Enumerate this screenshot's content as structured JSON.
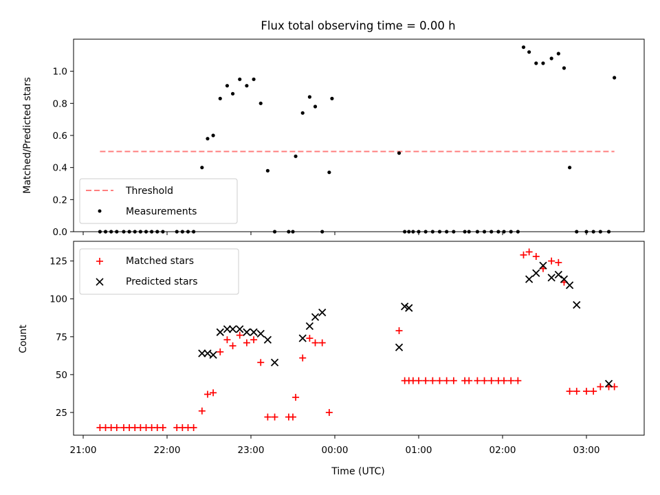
{
  "chart_data": [
    {
      "type": "scatter",
      "title": "Flux total observing time = 0.00 h",
      "xlabel": "",
      "ylabel": "Matched/Predicted stars",
      "ylim": [
        0,
        1.2
      ],
      "xlim": [
        "21:00",
        "03:30"
      ],
      "y_ticks": [
        "0.0",
        "0.2",
        "0.4",
        "0.6",
        "0.8",
        "1.0"
      ],
      "x_ticks": [
        "21:00",
        "22:00",
        "23:00",
        "00:00",
        "01:00",
        "02:00",
        "03:00"
      ],
      "legend": {
        "position": "lower-left",
        "entries": [
          "Threshold",
          "Measurements"
        ]
      },
      "colors": {
        "threshold": "#ff7f7f",
        "measurements": "#000000"
      },
      "series": [
        {
          "name": "Threshold",
          "style": "dashed-line",
          "x": [
            "21:12",
            "03:20"
          ],
          "values": [
            0.5,
            0.5
          ]
        },
        {
          "name": "Measurements",
          "style": "dot",
          "x": [
            "21:12",
            "21:16",
            "21:20",
            "21:24",
            "21:29",
            "21:33",
            "21:37",
            "21:41",
            "21:45",
            "21:49",
            "21:53",
            "21:57",
            "22:07",
            "22:11",
            "22:15",
            "22:19",
            "22:25",
            "22:29",
            "22:33",
            "22:38",
            "22:43",
            "22:47",
            "22:52",
            "22:57",
            "23:02",
            "23:07",
            "23:12",
            "23:17",
            "23:27",
            "23:30",
            "23:32",
            "23:37",
            "23:42",
            "23:46",
            "23:51",
            "23:56",
            "23:58",
            "00:46",
            "00:50",
            "00:53",
            "00:56",
            "01:00",
            "01:05",
            "01:10",
            "01:15",
            "01:20",
            "01:25",
            "01:33",
            "01:36",
            "01:42",
            "01:47",
            "01:52",
            "01:57",
            "02:01",
            "02:06",
            "02:11",
            "02:15",
            "02:19",
            "02:24",
            "02:29",
            "02:35",
            "02:40",
            "02:44",
            "02:48",
            "02:53",
            "03:00",
            "03:05",
            "03:10",
            "03:16",
            "03:20"
          ],
          "values": [
            0,
            0,
            0,
            0,
            0,
            0,
            0,
            0,
            0,
            0,
            0,
            0,
            0,
            0,
            0,
            0,
            0.4,
            0.58,
            0.6,
            0.83,
            0.91,
            0.86,
            0.95,
            0.91,
            0.95,
            0.8,
            0.38,
            0,
            0,
            0,
            0.47,
            0.74,
            0.84,
            0.78,
            0,
            0.37,
            0.83,
            0.49,
            0,
            0,
            0,
            0,
            0,
            0,
            0,
            0,
            0,
            0,
            0,
            0,
            0,
            0,
            0,
            0,
            0,
            0,
            1.15,
            1.12,
            1.05,
            1.05,
            1.08,
            1.11,
            1.02,
            0.4,
            0,
            0,
            0,
            0,
            0,
            0.96
          ]
        }
      ]
    },
    {
      "type": "scatter",
      "title": "",
      "xlabel": "Time (UTC)",
      "ylabel": "Count",
      "ylim": [
        10,
        138
      ],
      "xlim": [
        "21:00",
        "03:30"
      ],
      "y_ticks": [
        "25",
        "50",
        "75",
        "100",
        "125"
      ],
      "x_ticks": [
        "21:00",
        "22:00",
        "23:00",
        "00:00",
        "01:00",
        "02:00",
        "03:00"
      ],
      "legend": {
        "position": "upper-left",
        "entries": [
          "Matched stars",
          "Predicted stars"
        ]
      },
      "colors": {
        "matched": "#ff0000",
        "predicted": "#000000"
      },
      "series": [
        {
          "name": "Matched stars",
          "marker": "+",
          "x": [
            "21:12",
            "21:16",
            "21:20",
            "21:24",
            "21:29",
            "21:33",
            "21:37",
            "21:41",
            "21:45",
            "21:49",
            "21:53",
            "21:57",
            "22:07",
            "22:11",
            "22:15",
            "22:19",
            "22:25",
            "22:29",
            "22:33",
            "22:38",
            "22:43",
            "22:47",
            "22:52",
            "22:57",
            "23:02",
            "23:07",
            "23:12",
            "23:17",
            "23:27",
            "23:30",
            "23:32",
            "23:37",
            "23:42",
            "23:46",
            "23:51",
            "23:56",
            "00:46",
            "00:50",
            "00:53",
            "00:56",
            "01:00",
            "01:05",
            "01:10",
            "01:15",
            "01:20",
            "01:25",
            "01:33",
            "01:36",
            "01:42",
            "01:47",
            "01:52",
            "01:57",
            "02:01",
            "02:06",
            "02:11",
            "02:15",
            "02:19",
            "02:24",
            "02:29",
            "02:35",
            "02:40",
            "02:44",
            "02:48",
            "02:53",
            "03:00",
            "03:05",
            "03:10",
            "03:16",
            "03:20"
          ],
          "values": [
            15,
            15,
            15,
            15,
            15,
            15,
            15,
            15,
            15,
            15,
            15,
            15,
            15,
            15,
            15,
            15,
            26,
            37,
            38,
            65,
            73,
            69,
            76,
            71,
            73,
            58,
            22,
            22,
            22,
            22,
            35,
            61,
            74,
            71,
            71,
            25,
            79,
            46,
            46,
            46,
            46,
            46,
            46,
            46,
            46,
            46,
            46,
            46,
            46,
            46,
            46,
            46,
            46,
            46,
            46,
            129,
            131,
            128,
            120,
            125,
            124,
            111,
            39,
            39,
            39,
            39,
            42,
            42,
            42
          ]
        },
        {
          "name": "Predicted stars",
          "marker": "x",
          "x": [
            "22:25",
            "22:29",
            "22:33",
            "22:38",
            "22:43",
            "22:47",
            "22:52",
            "22:57",
            "23:02",
            "23:07",
            "23:12",
            "23:17",
            "23:37",
            "23:42",
            "23:46",
            "23:51",
            "00:46",
            "00:50",
            "00:53",
            "02:19",
            "02:24",
            "02:29",
            "02:35",
            "02:40",
            "02:44",
            "02:48",
            "02:53",
            "03:16"
          ],
          "values": [
            64,
            64,
            63,
            78,
            80,
            80,
            80,
            78,
            78,
            77,
            73,
            58,
            74,
            82,
            88,
            91,
            68,
            95,
            94,
            113,
            117,
            122,
            114,
            116,
            113,
            109,
            96,
            44
          ]
        }
      ]
    }
  ]
}
